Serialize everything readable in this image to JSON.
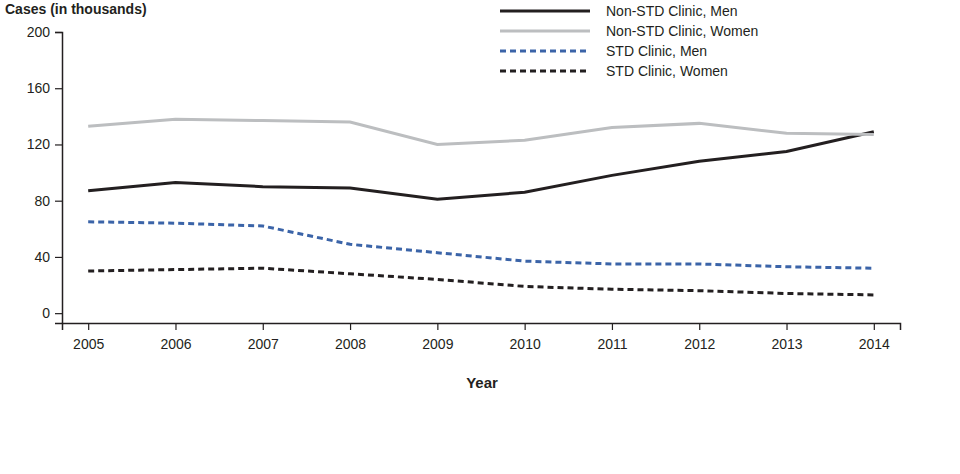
{
  "chart_data": {
    "type": "line",
    "x_label": "Year",
    "y_label": "Cases (in thousands)",
    "x": [
      2005,
      2006,
      2007,
      2008,
      2009,
      2010,
      2011,
      2012,
      2013,
      2014
    ],
    "xlim": [
      2004.7,
      2014.3
    ],
    "xticks": [
      2005,
      2006,
      2007,
      2008,
      2009,
      2010,
      2011,
      2012,
      2013,
      2014
    ],
    "ylim": [
      -7,
      200
    ],
    "yticks": [
      0,
      40,
      80,
      120,
      160,
      200
    ],
    "grid": false,
    "legend": "upper right",
    "series": [
      {
        "name": "Non-STD Clinic, Men",
        "color": "#231f20",
        "line_style": "solid",
        "values": [
          87,
          93,
          90,
          89,
          81,
          86,
          98,
          108,
          115,
          129
        ]
      },
      {
        "name": "Non-STD Clinic, Women",
        "color": "#bcbec0",
        "line_style": "solid",
        "values": [
          133,
          138,
          137,
          136,
          120,
          123,
          132,
          135,
          128,
          127
        ]
      },
      {
        "name": "STD Clinic, Men",
        "color": "#3b64a8",
        "line_style": "dashed",
        "values": [
          65,
          64,
          62,
          49,
          43,
          37,
          35,
          35,
          33,
          32
        ]
      },
      {
        "name": "STD Clinic, Women",
        "color": "#231f20",
        "line_style": "dashed",
        "values": [
          30,
          31,
          32,
          28,
          24,
          19,
          17,
          16,
          14,
          13
        ]
      }
    ]
  }
}
